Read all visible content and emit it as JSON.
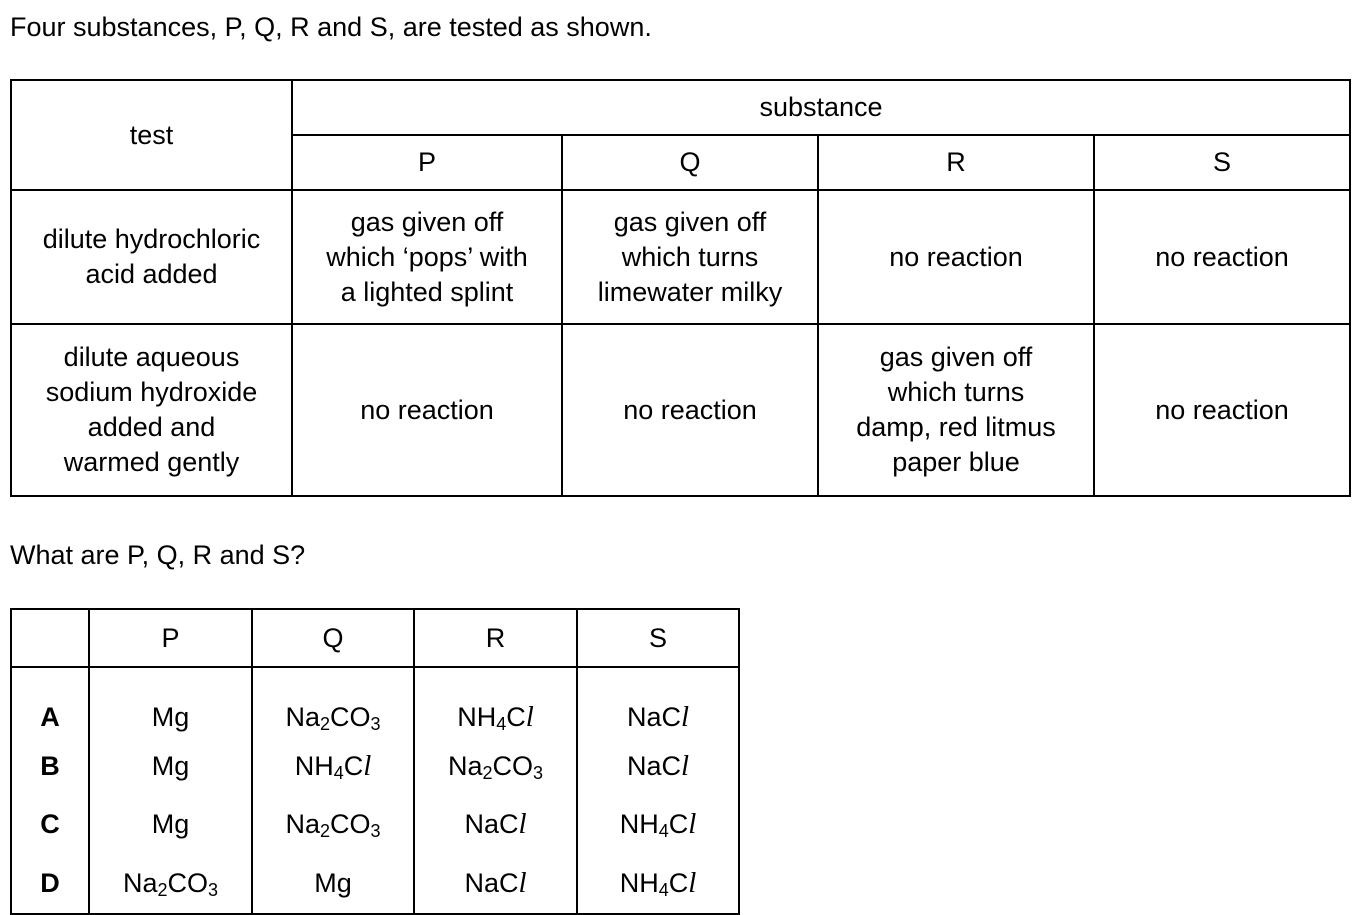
{
  "intro": "Four substances, P, Q, R and S, are tested as shown.",
  "tests_table": {
    "test_header": "test",
    "substance_header": "substance",
    "substances": [
      "P",
      "Q",
      "R",
      "S"
    ],
    "rows": [
      {
        "test": [
          "dilute hydrochloric",
          "acid added"
        ],
        "results": [
          [
            "gas given off",
            "which ‘pops’ with",
            "a lighted splint"
          ],
          [
            "gas given off",
            "which turns",
            "limewater milky"
          ],
          [
            "no reaction"
          ],
          [
            "no reaction"
          ]
        ]
      },
      {
        "test": [
          "dilute aqueous",
          "sodium hydroxide",
          "added and",
          "warmed gently"
        ],
        "results": [
          [
            "no reaction"
          ],
          [
            "no reaction"
          ],
          [
            "gas given off",
            "which turns",
            "damp, red litmus",
            "paper blue"
          ],
          [
            "no reaction"
          ]
        ]
      }
    ]
  },
  "question": "What are P, Q, R and S?",
  "answers_table": {
    "columns": [
      "",
      "P",
      "Q",
      "R",
      "S"
    ],
    "rows": [
      {
        "option": "A",
        "cells": [
          "Mg",
          "Na2CO3",
          "NH4Cl",
          "NaCl"
        ]
      },
      {
        "option": "B",
        "cells": [
          "Mg",
          "NH4Cl",
          "Na2CO3",
          "NaCl"
        ]
      },
      {
        "option": "C",
        "cells": [
          "Mg",
          "Na2CO3",
          "NaCl",
          "NH4Cl"
        ]
      },
      {
        "option": "D",
        "cells": [
          "Na2CO3",
          "Mg",
          "NaCl",
          "NH4Cl"
        ]
      }
    ]
  }
}
